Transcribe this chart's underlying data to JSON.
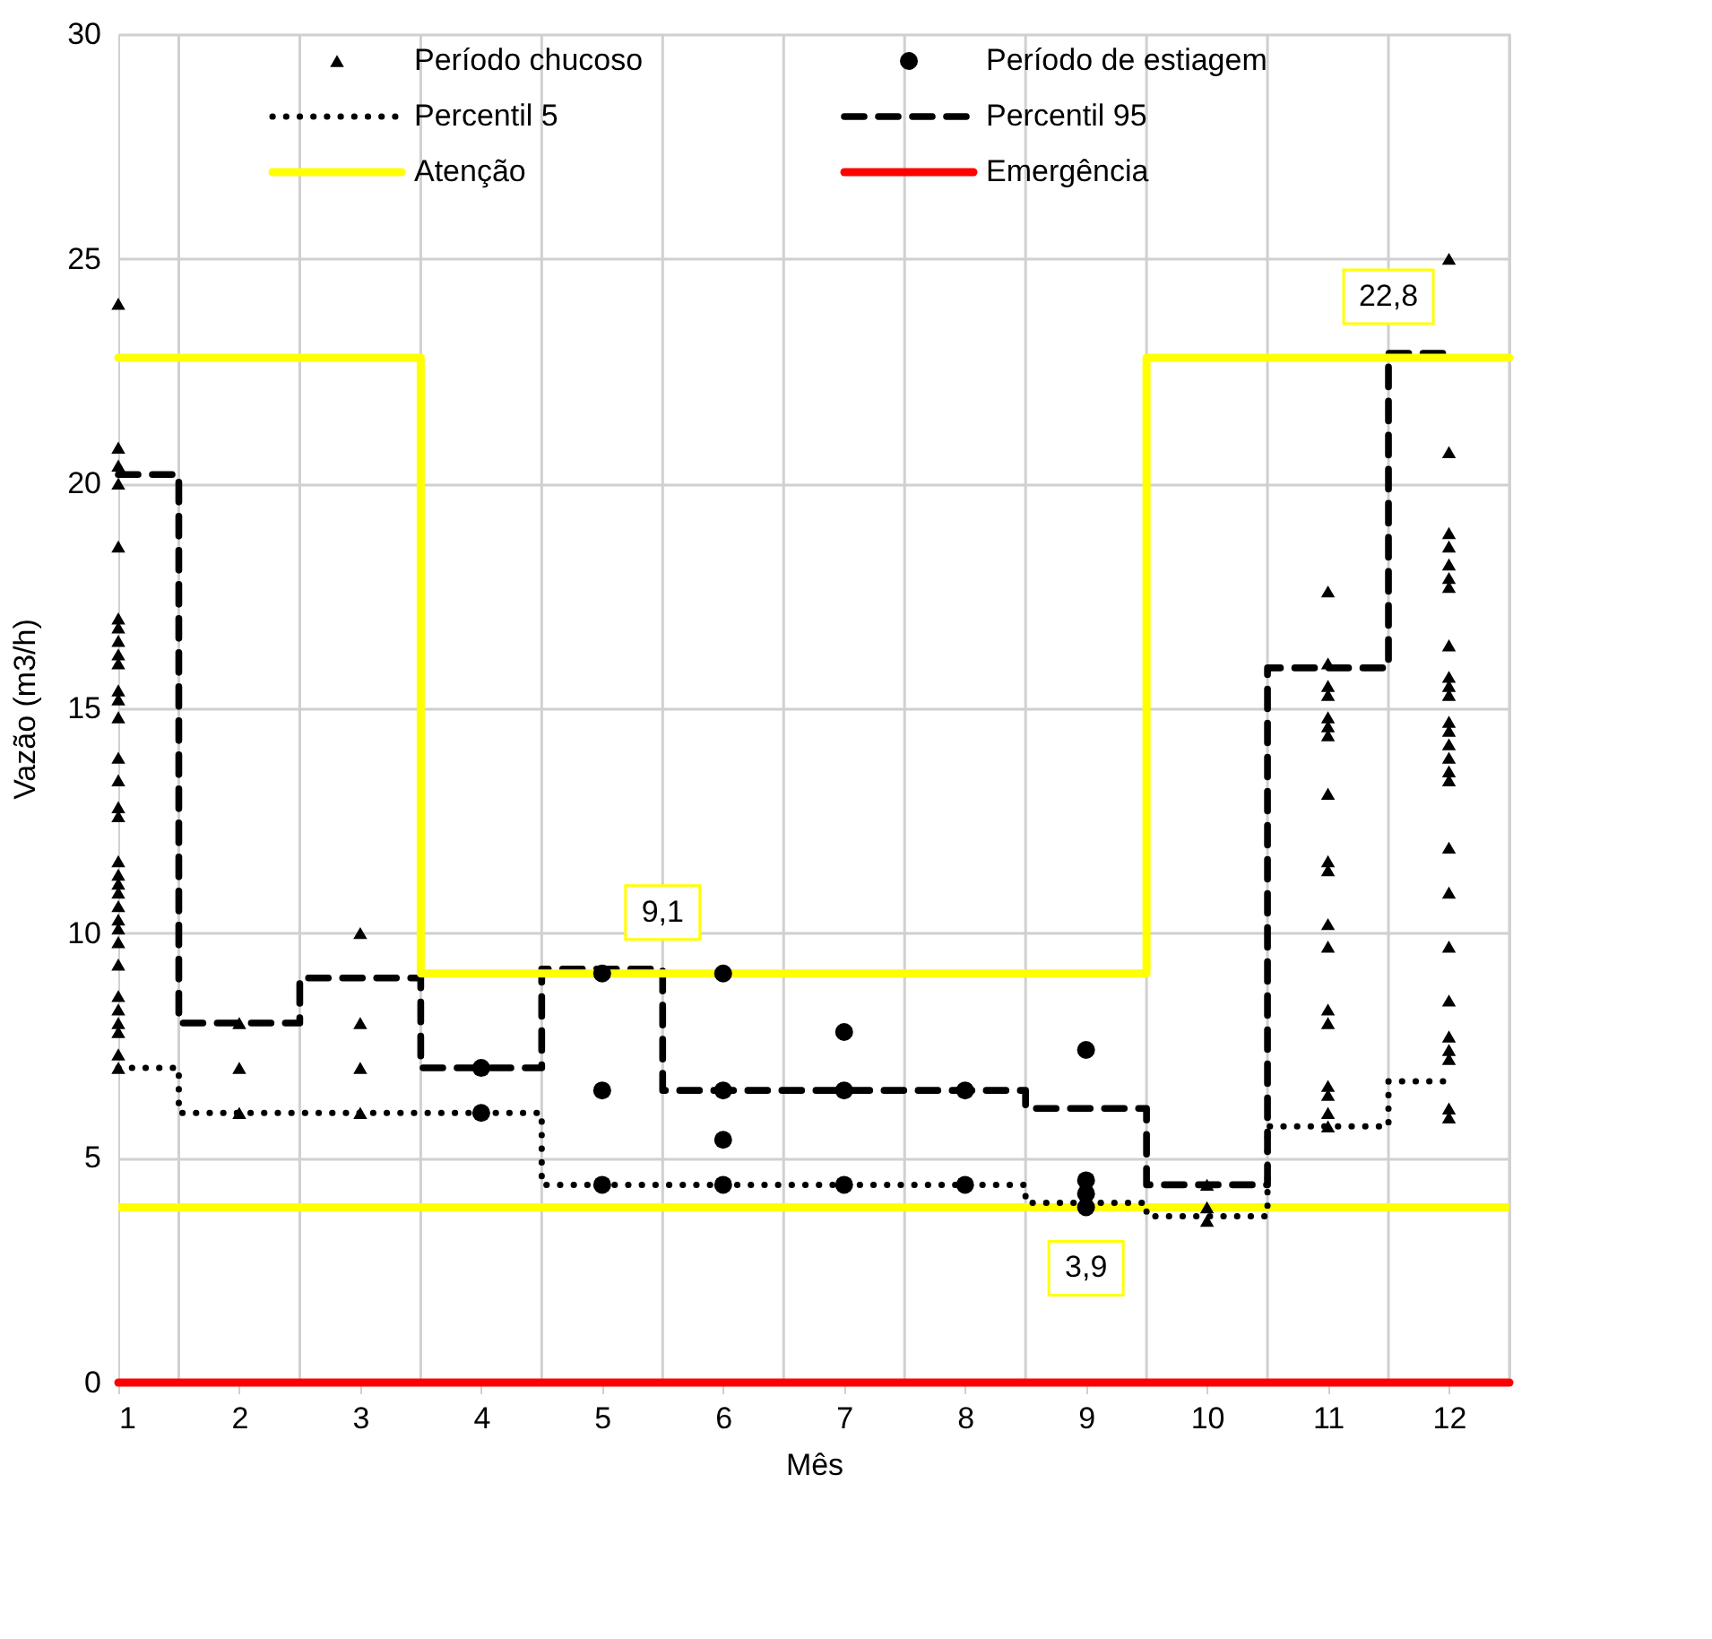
{
  "chart_data": {
    "type": "scatter",
    "xlabel": "Mês",
    "ylabel": "Vazão (m3/h)",
    "xlim": [
      1,
      12.5
    ],
    "xticks": [
      1,
      2,
      3,
      4,
      5,
      6,
      7,
      8,
      9,
      10,
      11,
      12
    ],
    "ylim": [
      0,
      30
    ],
    "yticks": [
      0,
      5,
      10,
      15,
      20,
      25,
      30
    ],
    "grid": true,
    "legend": "top",
    "series": [
      {
        "name": "Período chucoso",
        "marker": "triangle",
        "color": "#000000",
        "x": [
          1,
          1,
          1,
          1,
          1,
          1,
          1,
          1,
          1,
          1,
          1,
          1,
          1,
          1,
          1,
          1,
          1,
          1,
          1,
          1,
          1,
          1,
          1,
          1,
          1,
          1,
          1,
          1,
          1,
          1,
          1,
          1,
          2,
          2,
          2,
          3,
          3,
          3,
          3,
          10,
          10,
          10,
          11,
          11,
          11,
          11,
          11,
          11,
          11,
          11,
          11,
          11,
          11,
          11,
          11,
          11,
          11,
          11,
          11,
          11,
          12,
          12,
          12,
          12,
          12,
          12,
          12,
          12,
          12,
          12,
          12,
          12,
          12,
          12,
          12,
          12,
          12,
          12,
          12,
          12,
          12,
          12,
          12,
          12,
          12,
          12
        ],
        "values": [
          24,
          20.8,
          20.4,
          20,
          18.6,
          17,
          16.8,
          16.5,
          16.2,
          16,
          15.4,
          15.2,
          14.8,
          13.9,
          13.4,
          12.8,
          12.6,
          11.6,
          11.3,
          11.1,
          10.9,
          10.6,
          10.3,
          10.1,
          9.8,
          9.3,
          8.6,
          8.3,
          8,
          7.8,
          7.3,
          7,
          8,
          7,
          6,
          10,
          8,
          7,
          6,
          4.4,
          3.9,
          3.6,
          17.6,
          16,
          15.5,
          15.3,
          14.8,
          14.6,
          14.4,
          13.1,
          11.6,
          11.4,
          10.2,
          9.7,
          8.3,
          8,
          6.6,
          6.4,
          6,
          5.7,
          25,
          20.7,
          18.9,
          18.6,
          18.2,
          17.9,
          17.7,
          16.4,
          15.7,
          15.5,
          15.3,
          14.7,
          14.5,
          14.2,
          13.9,
          13.6,
          13.4,
          11.9,
          10.9,
          9.7,
          8.5,
          7.7,
          7.4,
          7.2,
          6.1,
          5.9
        ]
      },
      {
        "name": "Período de estiagem",
        "marker": "circle",
        "color": "#000000",
        "x": [
          4,
          4,
          5,
          5,
          5,
          6,
          6,
          6,
          6,
          7,
          7,
          7,
          8,
          8,
          9,
          9,
          9,
          9
        ],
        "values": [
          7,
          6,
          9.1,
          6.5,
          4.4,
          9.1,
          6.5,
          5.4,
          4.4,
          7.8,
          6.5,
          4.4,
          6.5,
          4.4,
          7.4,
          4.5,
          4.2,
          3.9
        ]
      },
      {
        "name": "Percentil 5",
        "type": "step",
        "line_style": "dotted",
        "color": "#000000",
        "x": [
          1,
          2,
          3,
          4,
          5,
          6,
          7,
          8,
          9,
          10,
          11,
          12
        ],
        "values": [
          7,
          6,
          6,
          6,
          4.4,
          4.4,
          4.4,
          4.4,
          4,
          3.7,
          5.7,
          6.7
        ]
      },
      {
        "name": "Percentil 95",
        "type": "step",
        "line_style": "dashed",
        "color": "#000000",
        "x": [
          1,
          2,
          3,
          4,
          5,
          6,
          7,
          8,
          9,
          10,
          11,
          12
        ],
        "values": [
          20.2,
          8,
          9,
          7,
          9.2,
          6.5,
          6.5,
          6.5,
          6.1,
          4.4,
          15.9,
          22.9
        ]
      },
      {
        "name": "Atenção",
        "type": "line",
        "line_style": "solid",
        "color": "#ffff00",
        "x": [
          1,
          3.5,
          3.5,
          9.5,
          9.5,
          12.5
        ],
        "values": [
          22.8,
          22.8,
          9.1,
          9.1,
          22.8,
          22.8
        ]
      },
      {
        "name": "Emergência",
        "type": "line",
        "line_style": "solid",
        "color": "#ff0000",
        "x": [
          1,
          12.5
        ],
        "values": [
          0,
          0
        ]
      }
    ],
    "ref_lines": [
      {
        "axis": "y",
        "value": 3.9,
        "color": "#ffff00"
      }
    ],
    "annotations": [
      {
        "text": "22,8",
        "x": 11.5,
        "y": 22.8
      },
      {
        "text": "9,1",
        "x": 5.5,
        "y": 9.1
      },
      {
        "text": "3,9",
        "x": 9,
        "y": 3.9
      }
    ]
  }
}
